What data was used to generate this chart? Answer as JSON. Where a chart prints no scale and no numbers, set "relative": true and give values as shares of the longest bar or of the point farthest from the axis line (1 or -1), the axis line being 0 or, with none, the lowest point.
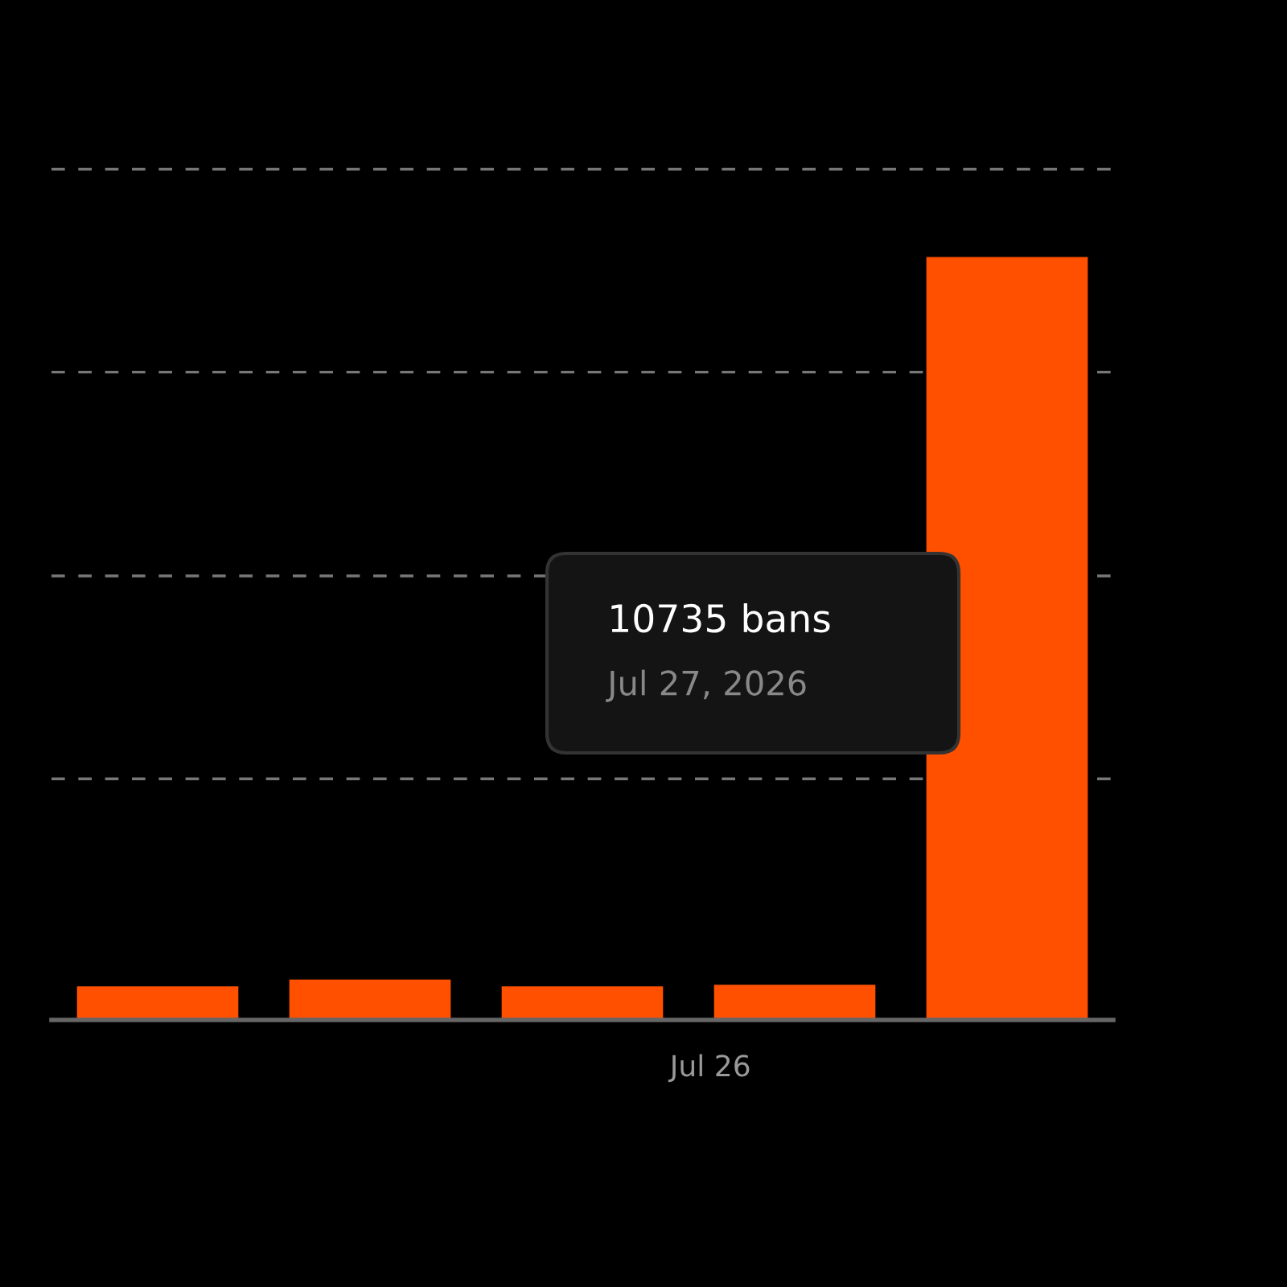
{
  "chart_data": {
    "type": "bar",
    "relative": true,
    "categories": [
      null,
      null,
      null,
      null,
      null
    ],
    "values": [
      0.044,
      0.053,
      0.044,
      0.046,
      1
    ],
    "color": "#ff5000",
    "ref_lines": [
      {
        "axis": "y",
        "value": 0.316,
        "color": "#777777",
        "line_style": "dashed"
      },
      {
        "axis": "y",
        "value": 0.582,
        "color": "#777777",
        "line_style": "dashed"
      },
      {
        "axis": "y",
        "value": 0.849,
        "color": "#777777",
        "line_style": "dashed"
      },
      {
        "axis": "y",
        "value": 1.115,
        "color": "#777777",
        "line_style": "dashed"
      }
    ],
    "annotations": [
      "10735 bans",
      "Jul 27, 2026",
      "Jul 26"
    ]
  }
}
